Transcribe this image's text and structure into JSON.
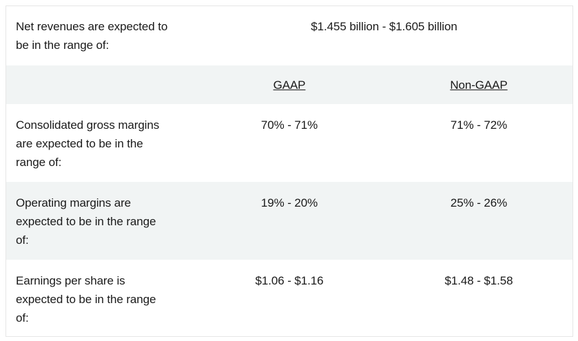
{
  "revenue": {
    "label_line1": "Net revenues are expected to",
    "label_line2": "be in the range of:",
    "value": "$1.455 billion - $1.605 billion"
  },
  "header": {
    "gaap": "GAAP",
    "non_gaap": "Non-GAAP"
  },
  "rows": [
    {
      "label_lines": [
        "Consolidated gross margins",
        "are expected to be in the",
        "range of:"
      ],
      "gaap": "70% - 71%",
      "non_gaap": "71% - 72%"
    },
    {
      "label_lines": [
        "Operating margins are",
        "expected to be in the range",
        "of:"
      ],
      "gaap": "19% - 20%",
      "non_gaap": "25% - 26%"
    },
    {
      "label_lines": [
        "Earnings per share is",
        "expected to be in the range",
        "of:"
      ],
      "gaap": "$1.06 - $1.16",
      "non_gaap": "$1.48 - $1.58"
    }
  ],
  "colors": {
    "border": "#e6e6e6",
    "shaded_row": "#f1f4f4",
    "text": "#1a1a1a"
  }
}
